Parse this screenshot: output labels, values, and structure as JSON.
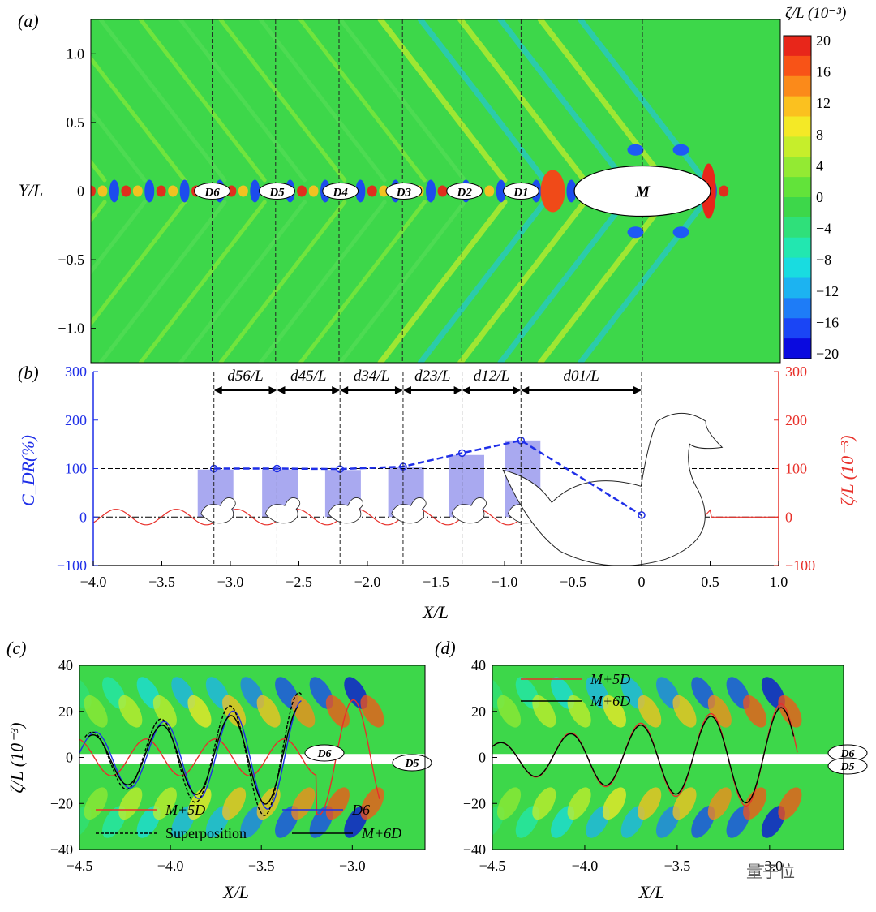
{
  "watermark": "量子位",
  "colors": {
    "blue": "#1f2fe8",
    "red": "#e8302a",
    "bar": "#a9a9f0",
    "field": "#3dd74a"
  },
  "panel_a": {
    "label": "(a)",
    "ylabel": "Y/L",
    "yticks": [
      "1.0",
      "0.5",
      "0",
      "−0.5",
      "−1.0"
    ],
    "body_labels": [
      "D6",
      "D5",
      "D4",
      "D3",
      "D2",
      "D1",
      "M"
    ],
    "colorbar": {
      "title": "ζ/L (10⁻³)",
      "ticks": [
        "20",
        "16",
        "12",
        "8",
        "4",
        "0",
        "−4",
        "−8",
        "−12",
        "−16",
        "−20"
      ],
      "range": [
        -20,
        20
      ],
      "colors": [
        "#0a0adf",
        "#1a45f5",
        "#1e7cf7",
        "#1cb3f1",
        "#19dce0",
        "#22e7b0",
        "#2fe07a",
        "#3dd74a",
        "#62e33a",
        "#93ea33",
        "#c6ee2b",
        "#f4e926",
        "#fbc11f",
        "#fb8a1a",
        "#f85317",
        "#e8261a"
      ]
    }
  },
  "chart_data": [
    {
      "panel": "(b)",
      "type": "bar",
      "title": "",
      "xlabel": "X/L",
      "ylabel_left": "C_DR(%)",
      "ylabel_right": "ζ/L (10⁻³)",
      "xlim": [
        -4.0,
        1.0
      ],
      "ylim_left": [
        -100,
        300
      ],
      "ylim_right": [
        -100,
        300
      ],
      "xticks": [
        "−4.0",
        "−3.5",
        "−3.0",
        "−2.5",
        "−2.0",
        "−1.5",
        "−1.0",
        "−0.5",
        "0",
        "0.5",
        "1.0"
      ],
      "yticks_left": [
        "300",
        "200",
        "100",
        "0",
        "−100"
      ],
      "yticks_right": [
        "300",
        "200",
        "100",
        "0",
        "−100"
      ],
      "bar_positions": [
        -3.12,
        -2.65,
        -2.19,
        -1.73,
        -1.29,
        -0.88,
        0.0
      ],
      "bar_values": [
        98,
        98,
        97,
        103,
        128,
        158,
        4
      ],
      "cdr_line_x": [
        -3.12,
        -2.66,
        -2.2,
        -1.74,
        -1.31,
        -0.88,
        0.0
      ],
      "cdr_line_y": [
        100,
        100,
        99,
        104,
        132,
        158,
        4
      ],
      "spacings": [
        "d56/L",
        "d45/L",
        "d34/L",
        "d23/L",
        "d12/L",
        "d01/L"
      ],
      "spacing_edges": [
        -3.12,
        -2.66,
        -2.2,
        -1.74,
        -1.31,
        -0.88,
        0.0
      ],
      "reference_line": 100
    },
    {
      "panel": "(c)",
      "type": "line",
      "xlabel": "X/L",
      "ylabel": "ζ/L (10⁻³)",
      "xlim": [
        -4.5,
        -2.6
      ],
      "ylim": [
        -40,
        40
      ],
      "xticks": [
        "−4.5",
        "−4.0",
        "−3.5",
        "−3.0"
      ],
      "yticks": [
        "40",
        "20",
        "0",
        "−20",
        "−40"
      ],
      "series": [
        {
          "name": "M+5D",
          "color": "#e8302a",
          "dash": "solid"
        },
        {
          "name": "D6",
          "color": "#1f2fe8",
          "dash": "solid"
        },
        {
          "name": "Superposition",
          "color": "#000000",
          "dash": "dashed"
        },
        {
          "name": "M+6D",
          "color": "#000000",
          "dash": "solid"
        }
      ],
      "body_labels": [
        "D6",
        "D5"
      ]
    },
    {
      "panel": "(d)",
      "type": "line",
      "xlabel": "X/L",
      "xlim": [
        -4.5,
        -2.6
      ],
      "ylim": [
        -40,
        40
      ],
      "xticks": [
        "−4.5",
        "−4.0",
        "−3.5",
        "−3.0"
      ],
      "yticks": [
        "40",
        "20",
        "0",
        "−20",
        "−40"
      ],
      "series": [
        {
          "name": "M+5D",
          "color": "#e8302a",
          "dash": "solid"
        },
        {
          "name": "M+6D",
          "color": "#000000",
          "dash": "solid"
        }
      ],
      "body_labels": [
        "D6",
        "D5"
      ]
    }
  ]
}
